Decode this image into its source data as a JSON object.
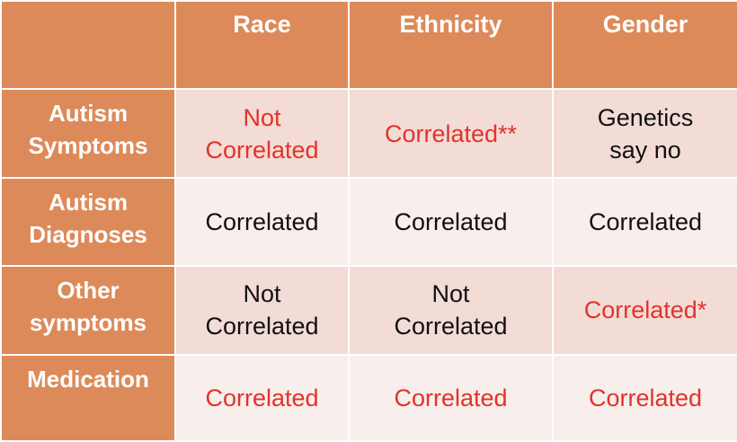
{
  "table": {
    "columns": [
      "Race",
      "Ethnicity",
      "Gender"
    ],
    "rows": [
      {
        "header": [
          "Autism",
          "Symptoms"
        ],
        "cells": [
          {
            "lines": [
              "Not",
              "Correlated"
            ],
            "highlight": true
          },
          {
            "lines": [
              "Correlated**"
            ],
            "highlight": true
          },
          {
            "lines": [
              "Genetics",
              "say no"
            ],
            "highlight": false
          }
        ]
      },
      {
        "header": [
          "Autism",
          "Diagnoses"
        ],
        "cells": [
          {
            "lines": [
              "Correlated"
            ],
            "highlight": false
          },
          {
            "lines": [
              "Correlated"
            ],
            "highlight": false
          },
          {
            "lines": [
              "Correlated"
            ],
            "highlight": false
          }
        ]
      },
      {
        "header": [
          "Other",
          "symptoms"
        ],
        "cells": [
          {
            "lines": [
              "Not",
              "Correlated"
            ],
            "highlight": false
          },
          {
            "lines": [
              "Not",
              "Correlated"
            ],
            "highlight": false
          },
          {
            "lines": [
              "Correlated*"
            ],
            "highlight": true
          }
        ]
      },
      {
        "header": [
          "Medication"
        ],
        "cells": [
          {
            "lines": [
              "Correlated"
            ],
            "highlight": true
          },
          {
            "lines": [
              "Correlated"
            ],
            "highlight": true
          },
          {
            "lines": [
              "Correlated"
            ],
            "highlight": true
          }
        ]
      }
    ]
  },
  "colors": {
    "header_bg": "#dd8a5a",
    "row_dark": "#f3dcd6",
    "row_light": "#f8eeeb",
    "highlight_text": "#e2332b",
    "normal_text": "#111111"
  }
}
